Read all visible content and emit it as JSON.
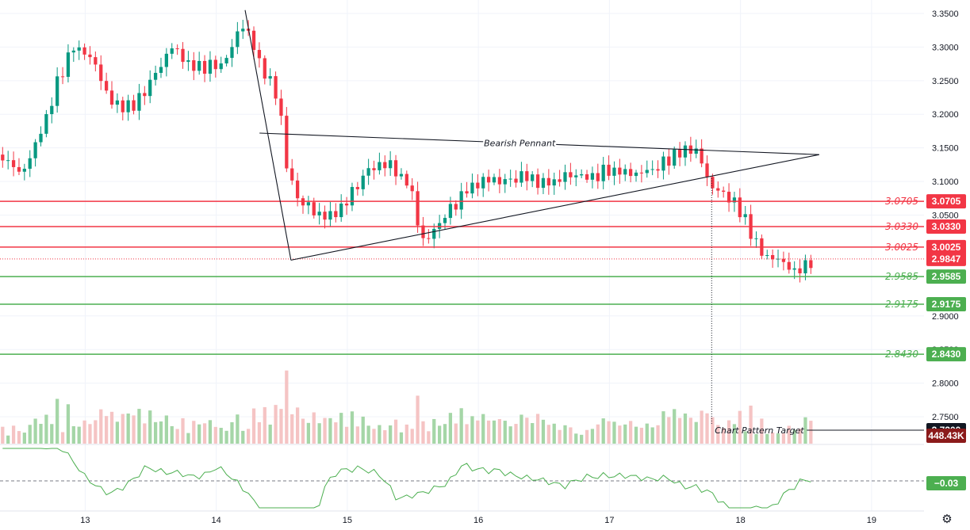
{
  "chart_data": {
    "type": "candlestick",
    "y_axis": {
      "range": [
        2.71,
        3.37
      ],
      "ticks": [
        {
          "value": 3.35,
          "label": "3.3500"
        },
        {
          "value": 3.3,
          "label": "3.3000"
        },
        {
          "value": 3.25,
          "label": "3.2500"
        },
        {
          "value": 3.2,
          "label": "3.2000"
        },
        {
          "value": 3.15,
          "label": "3.1500"
        },
        {
          "value": 3.1,
          "label": "3.1000"
        },
        {
          "value": 3.05,
          "label": "3.0500"
        },
        {
          "value": 2.9,
          "label": "2.9000"
        },
        {
          "value": 2.85,
          "label": "2.8500"
        },
        {
          "value": 2.8,
          "label": "2.8000"
        },
        {
          "value": 2.75,
          "label": "2.7500"
        }
      ]
    },
    "x_axis": {
      "range": [
        12.35,
        19.4
      ],
      "ticks": [
        {
          "value": 13,
          "label": "13"
        },
        {
          "value": 14,
          "label": "14"
        },
        {
          "value": 15,
          "label": "15"
        },
        {
          "value": 16,
          "label": "16"
        },
        {
          "value": 17,
          "label": "17"
        },
        {
          "value": 18,
          "label": "18"
        },
        {
          "value": 19,
          "label": "19"
        }
      ]
    },
    "levels": [
      {
        "value": 3.0705,
        "label": "3.0705",
        "tag": "3.0705",
        "color": "#f23645"
      },
      {
        "value": 3.033,
        "label": "3.0330",
        "tag": "3.0330",
        "color": "#f23645"
      },
      {
        "value": 3.0025,
        "label": "3.0025",
        "tag": "3.0025",
        "color": "#f23645"
      },
      {
        "value": 2.9585,
        "label": "2.9585",
        "tag": "2.9585",
        "color": "#4caf50"
      },
      {
        "value": 2.9175,
        "label": "2.9175",
        "tag": "2.9175",
        "color": "#4caf50"
      },
      {
        "value": 2.843,
        "label": "2.8430",
        "tag": "2.8430",
        "color": "#4caf50"
      }
    ],
    "current_price": {
      "value": 2.9847,
      "label": "2.9847",
      "color": "#f23645"
    },
    "target": {
      "value": 2.73,
      "label": "2.7300",
      "annotation": "Chart Pattern Target",
      "from_x": 17.78
    },
    "pennant": {
      "label": "Bearish Pennant",
      "pole": [
        {
          "x": 14.22,
          "y": 3.355
        },
        {
          "x": 14.57,
          "y": 2.983
        }
      ],
      "upper": [
        {
          "x": 14.33,
          "y": 3.172
        },
        {
          "x": 18.6,
          "y": 3.14
        }
      ],
      "lower": [
        {
          "x": 14.57,
          "y": 2.983
        },
        {
          "x": 18.6,
          "y": 3.14
        }
      ]
    },
    "volume": {
      "last_label": "448.43K",
      "color": "#8b1a1a"
    },
    "oscillator": {
      "value": -0.03,
      "label": "−0.03",
      "color": "#4caf50"
    },
    "colors": {
      "up": "#089981",
      "down": "#f23645",
      "vol_up": "#a5d6a7",
      "vol_down": "#f5c4c4"
    }
  },
  "icons": {
    "settings": "gear-icon"
  },
  "settings_glyph": "⚙"
}
